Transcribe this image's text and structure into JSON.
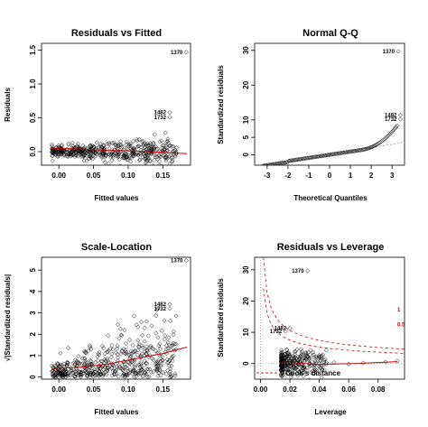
{
  "chart_data": [
    {
      "type": "scatter",
      "title": "Residuals vs Fitted",
      "xlabel": "Fitted values",
      "ylabel": "Residuals",
      "xlim": [
        -0.025,
        0.19
      ],
      "ylim": [
        -0.2,
        1.6
      ],
      "xticks": [
        0.0,
        0.05,
        0.1,
        0.15
      ],
      "xtick_labels": [
        "0.00",
        "0.05",
        "0.10",
        "0.15"
      ],
      "yticks": [
        0.0,
        0.5,
        1.0,
        1.5
      ],
      "ytick_labels": [
        "0.0",
        "0.5",
        "1.0",
        "1.5"
      ],
      "labeled_points": [
        {
          "label": "1370",
          "x": 0.184,
          "y": 1.47
        },
        {
          "label": "1482",
          "x": 0.16,
          "y": 0.58
        },
        {
          "label": "1732",
          "x": 0.16,
          "y": 0.51
        }
      ],
      "smoother": {
        "x": [
          -0.01,
          0.03,
          0.07,
          0.11,
          0.15,
          0.185
        ],
        "y": [
          0.05,
          0.04,
          0.02,
          0.01,
          -0.01,
          -0.03
        ]
      },
      "cloud": {
        "x_range": [
          -0.01,
          0.17
        ],
        "y_spread": 0.12,
        "n": 500
      }
    },
    {
      "type": "scatter",
      "title": "Normal Q-Q",
      "xlabel": "Theoretical Quantiles",
      "ylabel": "Standardized residuals",
      "xlim": [
        -3.6,
        3.6
      ],
      "ylim": [
        -3,
        32
      ],
      "xticks": [
        -3,
        -2,
        -1,
        0,
        1,
        2,
        3
      ],
      "xtick_labels": [
        "-3",
        "-2",
        "-1",
        "0",
        "1",
        "2",
        "3"
      ],
      "yticks": [
        0,
        5,
        10,
        20,
        30
      ],
      "ytick_labels": [
        "0",
        "5",
        "10",
        "20",
        "30"
      ],
      "labeled_points": [
        {
          "label": "1370",
          "x": 3.3,
          "y": 29.7
        },
        {
          "label": "1482",
          "x": 3.4,
          "y": 11.4
        },
        {
          "label": "1732",
          "x": 3.4,
          "y": 10.2
        }
      ],
      "reference_line": {
        "intercept": 0,
        "slope": 1.0
      },
      "qq": {
        "x_range": [
          -3.2,
          3.25
        ],
        "n": 120
      }
    },
    {
      "type": "scatter",
      "title": "Scale-Location",
      "xlabel": "Fitted values",
      "ylabel": "√|Standardized residuals|",
      "xlim": [
        -0.025,
        0.19
      ],
      "ylim": [
        -0.1,
        5.6
      ],
      "xticks": [
        0.0,
        0.05,
        0.1,
        0.15
      ],
      "xtick_labels": [
        "0.00",
        "0.05",
        "0.10",
        "0.15"
      ],
      "yticks": [
        0,
        1,
        2,
        3,
        4,
        5
      ],
      "ytick_labels": [
        "0",
        "1",
        "2",
        "3",
        "4",
        "5"
      ],
      "labeled_points": [
        {
          "label": "1370",
          "x": 0.184,
          "y": 5.45
        },
        {
          "label": "1482",
          "x": 0.16,
          "y": 3.4
        },
        {
          "label": "1732",
          "x": 0.16,
          "y": 3.2
        }
      ],
      "smoother": {
        "x": [
          -0.01,
          0.03,
          0.07,
          0.11,
          0.15,
          0.185
        ],
        "y": [
          0.4,
          0.45,
          0.6,
          0.85,
          1.1,
          1.4
        ]
      },
      "cloud": {
        "x_range": [
          -0.01,
          0.17
        ],
        "y_spread": 1.5,
        "n": 500
      }
    },
    {
      "type": "scatter",
      "title": "Residuals vs Leverage",
      "xlabel": "Leverage",
      "ylabel": "Standardized residuals",
      "xlim": [
        -0.004,
        0.098
      ],
      "ylim": [
        -5,
        34
      ],
      "xticks": [
        0.0,
        0.02,
        0.04,
        0.06,
        0.08
      ],
      "xtick_labels": [
        "0.00",
        "0.02",
        "0.04",
        "0.06",
        "0.08"
      ],
      "yticks": [
        0,
        10,
        20,
        30
      ],
      "ytick_labels": [
        "0",
        "10",
        "20",
        "30"
      ],
      "labeled_points": [
        {
          "label": "1370",
          "x": 0.032,
          "y": 29.7
        },
        {
          "label": "1482",
          "x": 0.02,
          "y": 11.3
        },
        {
          "label": "1732",
          "x": 0.017,
          "y": 10.3
        }
      ],
      "cooks_labels": [
        {
          "label": "1",
          "x": 0.098,
          "y": 17.5
        },
        {
          "label": "0.5",
          "x": 0.098,
          "y": 12.8
        }
      ],
      "cooks_distance_label": "Cook's distance",
      "cloud": {
        "x_range": [
          0.014,
          0.045
        ],
        "y_spread": 4,
        "n": 300
      }
    }
  ]
}
